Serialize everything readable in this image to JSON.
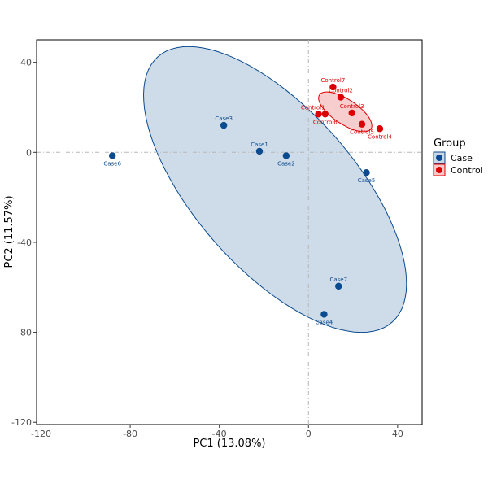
{
  "chart_data": {
    "type": "scatter",
    "xlabel": "PC1 (13.08%)",
    "ylabel": "PC2 (11.57%)",
    "xlim": [
      -122,
      51
    ],
    "ylim": [
      -121,
      50
    ],
    "xticks": [
      -120,
      -80,
      -40,
      0,
      40
    ],
    "yticks": [
      40,
      0,
      -40,
      -80,
      -120
    ],
    "xtick_labels": [
      "-120",
      "-80",
      "-40",
      "0",
      "40"
    ],
    "ytick_labels": [
      "40",
      "0",
      "-40",
      "-80",
      "-120"
    ],
    "grid": false,
    "reference_lines": {
      "x": 0,
      "y": 0
    },
    "legend": {
      "title": "Group",
      "position": "right",
      "entries": [
        {
          "name": "Case",
          "color": "#0a4a8f",
          "fill": "#c9d7e6"
        },
        {
          "name": "Control",
          "color": "#dd0000",
          "fill": "#f6c8c8"
        }
      ]
    },
    "series": [
      {
        "name": "Case",
        "color": "#0a4a8f",
        "ellipse_fill": "#c9d7e6",
        "points": [
          {
            "label": "Case1",
            "x": -22,
            "y": 0.5
          },
          {
            "label": "Case2",
            "x": -10,
            "y": -1.5
          },
          {
            "label": "Case3",
            "x": -38,
            "y": 12
          },
          {
            "label": "Case4",
            "x": 7,
            "y": -72
          },
          {
            "label": "Case5",
            "x": 26,
            "y": -9
          },
          {
            "label": "Case6",
            "x": -88,
            "y": -1.5
          },
          {
            "label": "Case7",
            "x": 13.5,
            "y": -59.5
          }
        ]
      },
      {
        "name": "Control",
        "color": "#dd0000",
        "ellipse_fill": "#f6c8c8",
        "points": [
          {
            "label": "Control1",
            "x": 4.5,
            "y": 17
          },
          {
            "label": "Control2",
            "x": 14.5,
            "y": 24.5
          },
          {
            "label": "Control3",
            "x": 19.5,
            "y": 17.5
          },
          {
            "label": "Control4",
            "x": 32,
            "y": 10.5
          },
          {
            "label": "Control5",
            "x": 24,
            "y": 12.5
          },
          {
            "label": "Control6",
            "x": 7.5,
            "y": 17
          },
          {
            "label": "Control7",
            "x": 11,
            "y": 29
          }
        ]
      }
    ],
    "ellipses": [
      {
        "group": "Case",
        "cx": -15,
        "cy": -16.5,
        "rx": 79,
        "ry": 35.7,
        "rotation_deg": -48.2
      },
      {
        "group": "Control",
        "cx": 16.5,
        "cy": 18,
        "rx": 13.8,
        "ry": 5.5,
        "rotation_deg": -33
      }
    ]
  }
}
